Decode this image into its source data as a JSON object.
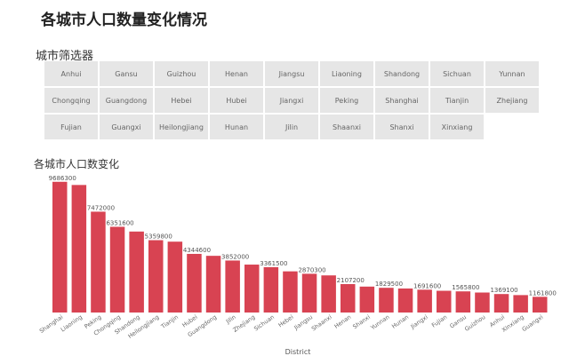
{
  "page": {
    "title": "各城市人口数量变化情况",
    "filter_title": "城市筛选器",
    "chart_title": "各城市人口数变化"
  },
  "filter": {
    "cities": [
      "Anhui",
      "Gansu",
      "Guizhou",
      "Henan",
      "Jiangsu",
      "Liaoning",
      "Shandong",
      "Sichuan",
      "Yunnan",
      "Chongqing",
      "Guangdong",
      "Hebei",
      "Hubei",
      "Jiangxi",
      "Peking",
      "Shanghai",
      "Tianjin",
      "Zhejiang",
      "Fujian",
      "Guangxi",
      "Heilongjiang",
      "Hunan",
      "Jilin",
      "Shaanxi",
      "Shanxi",
      "Xinxiang"
    ]
  },
  "colors": {
    "bar": "#d84352",
    "button_bg": "#e6e6e6",
    "button_text": "#666666"
  },
  "chart_data": {
    "type": "bar",
    "xlabel": "District",
    "ylabel": "",
    "ylim": [
      0,
      10000000
    ],
    "categories": [
      "Shanghai",
      "Liaoning",
      "Peking",
      "Chongqing",
      "Shandong",
      "Heilongjiang",
      "Tianjin",
      "Hubei",
      "Guangdong",
      "Jilin",
      "Zhejiang",
      "Sichuan",
      "Hebei",
      "Jiangsu",
      "Shaanxi",
      "Henan",
      "Shanxi",
      "Yunnan",
      "Hunan",
      "Jiangxi",
      "Fujian",
      "Gansu",
      "Guizhou",
      "Anhui",
      "Xinxiang",
      "Guangxi"
    ],
    "values": [
      9686300,
      9450000,
      7472000,
      6351600,
      6000000,
      5359800,
      5250000,
      4344600,
      4200000,
      3852000,
      3550000,
      3361500,
      3050000,
      2870300,
      2750000,
      2107200,
      1920000,
      1829500,
      1780000,
      1691600,
      1610000,
      1565800,
      1480000,
      1369100,
      1290000,
      1161800
    ],
    "data_labels": {
      "0": "9686300",
      "2": "7472000",
      "3": "6351600",
      "5": "5359800",
      "7": "4344600",
      "9": "3852000",
      "11": "3361500",
      "13": "2870300",
      "15": "2107200",
      "17": "1829500",
      "19": "1691600",
      "21": "1565800",
      "23": "1369100",
      "25": "1161800"
    }
  }
}
